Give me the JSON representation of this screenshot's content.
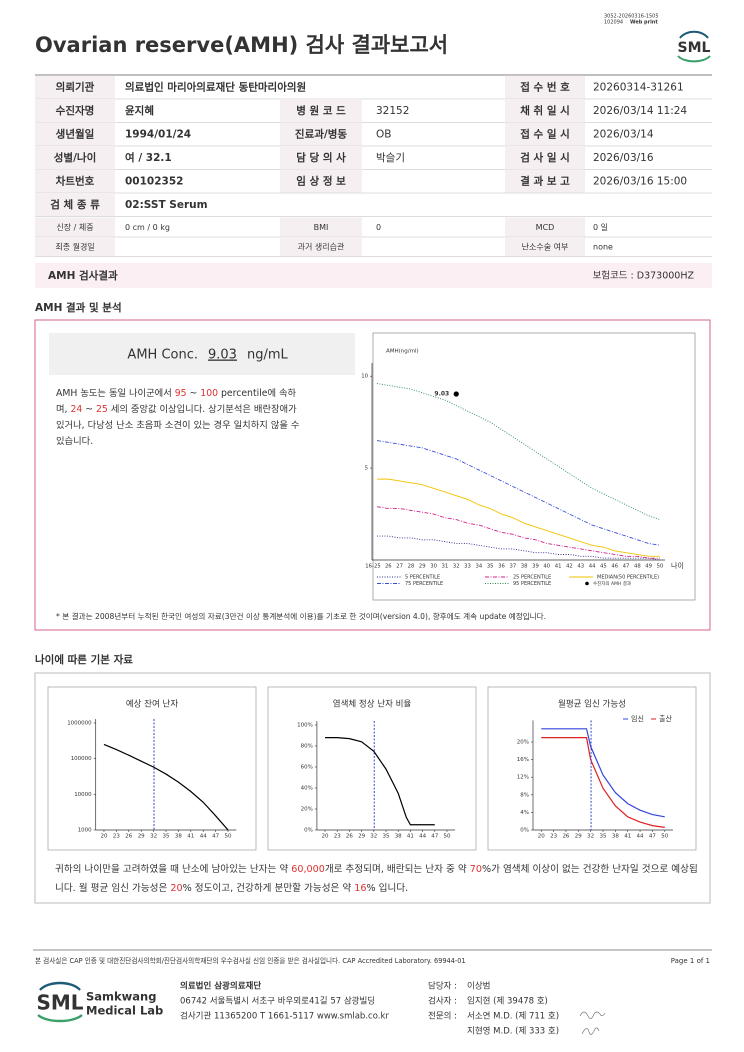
{
  "header": {
    "doc_id": "3052-20260316-1505",
    "print_id": "102094",
    "print_mode": "Web print",
    "title": "Ovarian reserve(AMH) 검사 결과보고서",
    "logo": "SML"
  },
  "patient_info": {
    "rows": [
      [
        {
          "label": "의뢰기관",
          "value": "의료법인 마리아의료재단 동탄마리아의원"
        },
        {
          "label": "접 수 번 호",
          "value": "20260314-31261"
        }
      ],
      [
        {
          "label": "수진자명",
          "value": "윤지혜"
        },
        {
          "label": "병 원 코 드",
          "value": "32152"
        },
        {
          "label": "채 취 일 시",
          "value": "2026/03/14 11:24"
        }
      ],
      [
        {
          "label": "생년월일",
          "value": "1994/01/24"
        },
        {
          "label": "진료과/병동",
          "value": "OB"
        },
        {
          "label": "접 수 일 시",
          "value": "2026/03/14"
        }
      ],
      [
        {
          "label": "성별/나이",
          "value": "여 / 32.1"
        },
        {
          "label": "담 당 의 사",
          "value": "박슬기"
        },
        {
          "label": "검 사 일 시",
          "value": "2026/03/16"
        }
      ],
      [
        {
          "label": "차트번호",
          "value": "00102352"
        },
        {
          "label": "임 상 정 보"
        },
        {
          "label": "결 과 보 고",
          "value": "2026/03/16 15:00"
        }
      ],
      [
        {
          "label": "검 체 종 류",
          "value": "02:SST Serum"
        }
      ]
    ],
    "small_rows": [
      [
        {
          "label": "신장 / 체중",
          "value": "0 cm / 0 kg"
        },
        {
          "label": "BMI",
          "value": "0"
        },
        {
          "label": "MCD",
          "value": "0 일"
        }
      ],
      [
        {
          "label": "최종 월경일"
        },
        {
          "label": "과거 생리습관"
        },
        {
          "label": "난소수술 여부",
          "value": "none"
        }
      ]
    ]
  },
  "result_band": {
    "title": "AMH 검사결과",
    "insurance_code": "보험코드 : D373000HZ"
  },
  "analysis": {
    "section_title": "AMH 결과 및 분석",
    "conc_label": "AMH Conc.",
    "conc_value": 9.03,
    "conc_unit": "ng/mL",
    "text": [
      "AMH 농도는 동일 나이군에서 ",
      "95",
      " ~ ",
      "100",
      " percentile에 속하며, ",
      "24",
      " ~ ",
      "25",
      " 세의 중앙값 이상입니다. 상기분석은 배란장애가 있거나, 다낭성 난소 초음파 소견이 있는 경우 일치하지 않을 수 있습니다."
    ],
    "footnote": "* 본 결과는 2008년부터 누적된 한국인 여성의 자료(3만건 이상 통계분석에 이용)를 기초로 한 것이며(version 4.0), 향후에도 계속 update 예정입니다."
  },
  "amh_chart": {
    "type": "line",
    "y_label": "AMH(ng/ml)",
    "x_label": "나이",
    "categories": [
      "16-25",
      "26",
      "27",
      "28",
      "29",
      "30",
      "31",
      "32",
      "33",
      "34",
      "35",
      "36",
      "37",
      "38",
      "39",
      "40",
      "41",
      "42",
      "43",
      "44",
      "45",
      "46",
      "47",
      "48",
      "49",
      "50"
    ],
    "ylim": [
      0,
      10.5
    ],
    "yticks": [
      5,
      10
    ],
    "series": [
      {
        "name": "5 PERCENTILE",
        "color": "#2d3290",
        "dash": "dotted",
        "values": [
          1.3,
          1.3,
          1.2,
          1.2,
          1.1,
          1.1,
          1.0,
          0.9,
          0.9,
          0.8,
          0.7,
          0.6,
          0.6,
          0.5,
          0.4,
          0.4,
          0.3,
          0.3,
          0.2,
          0.2,
          0.1,
          0.1,
          0.1,
          0.1,
          0.1,
          0.0
        ]
      },
      {
        "name": "25 PERCENTILE",
        "color": "#d0228a",
        "dash": "dashdot",
        "values": [
          2.9,
          2.8,
          2.8,
          2.7,
          2.6,
          2.5,
          2.3,
          2.2,
          2.0,
          1.9,
          1.7,
          1.5,
          1.4,
          1.2,
          1.1,
          0.9,
          0.8,
          0.7,
          0.6,
          0.5,
          0.4,
          0.3,
          0.2,
          0.2,
          0.1,
          0.1
        ]
      },
      {
        "name": "MEDIAN(50 PERCENTILE)",
        "color": "#f2c200",
        "dash": "solid",
        "values": [
          4.4,
          4.4,
          4.3,
          4.2,
          4.1,
          3.9,
          3.7,
          3.5,
          3.3,
          3.0,
          2.8,
          2.5,
          2.3,
          2.0,
          1.8,
          1.6,
          1.4,
          1.2,
          1.0,
          0.8,
          0.7,
          0.5,
          0.4,
          0.3,
          0.2,
          0.2
        ]
      },
      {
        "name": "75 PERCENTILE",
        "color": "#3a4fd8",
        "dash": "dashdot",
        "values": [
          6.5,
          6.4,
          6.3,
          6.2,
          6.1,
          5.9,
          5.7,
          5.5,
          5.2,
          4.9,
          4.6,
          4.3,
          4.0,
          3.7,
          3.4,
          3.1,
          2.8,
          2.5,
          2.2,
          1.9,
          1.7,
          1.5,
          1.3,
          1.1,
          0.9,
          0.8
        ]
      },
      {
        "name": "95 PERCENTILE",
        "color": "#2e8b57",
        "dash": "dotted",
        "values": [
          9.6,
          9.5,
          9.4,
          9.3,
          9.1,
          8.9,
          8.7,
          8.4,
          8.1,
          7.8,
          7.5,
          7.1,
          6.7,
          6.3,
          5.9,
          5.5,
          5.1,
          4.7,
          4.3,
          3.9,
          3.6,
          3.3,
          3.0,
          2.7,
          2.4,
          2.2
        ]
      }
    ],
    "patient": {
      "name": "수진자의 AMH 결과",
      "x": "32",
      "value": 9.03,
      "color": "#000000"
    }
  },
  "age_data": {
    "section_title": "나이에 따른 기본 자료",
    "charts": [
      {
        "type": "line",
        "title": "예상 잔여 난자",
        "log": true,
        "xlim": [
          18,
          52
        ],
        "xticks": [
          20,
          23,
          26,
          29,
          32,
          35,
          38,
          41,
          44,
          47,
          50
        ],
        "ylim": [
          1000,
          1000000
        ],
        "yticks": [
          1000,
          10000,
          100000,
          1000000
        ],
        "marker_x": 32.1,
        "series": [
          {
            "color": "#000000",
            "x": [
              20,
              23,
              26,
              29,
              32,
              35,
              38,
              41,
              44,
              47,
              50
            ],
            "values": [
              250000,
              180000,
              125000,
              85000,
              58000,
              37000,
              22000,
              12000,
              6000,
              2500,
              1000
            ]
          }
        ]
      },
      {
        "type": "line",
        "title": "염색체 정상 난자 비율",
        "xlim": [
          18,
          52
        ],
        "xticks": [
          20,
          23,
          26,
          29,
          32,
          35,
          38,
          41,
          44,
          47,
          50
        ],
        "ylim": [
          0,
          100
        ],
        "yticks": [
          {
            "value": 0,
            "label": "0%"
          },
          {
            "value": 20,
            "label": "20%"
          },
          {
            "value": 40,
            "label": "40%"
          },
          {
            "value": 60,
            "label": "60%"
          },
          {
            "value": 80,
            "label": "80%"
          },
          {
            "value": 100,
            "label": "100%"
          }
        ],
        "marker_x": 32.1,
        "series": [
          {
            "color": "#000000",
            "x": [
              20,
              23,
              26,
              29,
              32,
              35,
              38,
              40,
              41,
              44,
              47
            ],
            "values": [
              88,
              88,
              87,
              84,
              75,
              58,
              35,
              12,
              5,
              5,
              5
            ]
          }
        ]
      },
      {
        "type": "line",
        "title": "월평균 임신 가능성",
        "xlim": [
          18,
          52
        ],
        "xticks": [
          20,
          23,
          26,
          29,
          32,
          35,
          38,
          41,
          44,
          47,
          50
        ],
        "ylim": [
          0,
          24
        ],
        "yticks": [
          {
            "value": 0,
            "label": "0%"
          },
          {
            "value": 4,
            "label": "4%"
          },
          {
            "value": 8,
            "label": "8%"
          },
          {
            "value": 12,
            "label": "12%"
          },
          {
            "value": 16,
            "label": "16%"
          },
          {
            "value": 20,
            "label": "20%"
          }
        ],
        "marker_x": 32.1,
        "series": [
          {
            "name": "임신",
            "color": "#3344dd",
            "x": [
              20,
              23,
              26,
              29,
              31,
              32,
              35,
              38,
              41,
              44,
              47,
              50
            ],
            "values": [
              23,
              23,
              23,
              23,
              23,
              19,
              12.5,
              8.5,
              6,
              4.5,
              3.5,
              3
            ]
          },
          {
            "name": "출산",
            "color": "#dd2222",
            "x": [
              20,
              23,
              26,
              29,
              31,
              32,
              35,
              38,
              41,
              44,
              47,
              50
            ],
            "values": [
              21,
              21,
              21,
              21,
              21,
              16,
              9.5,
              5.5,
              3,
              1.8,
              1,
              0.6
            ]
          }
        ]
      }
    ],
    "text": [
      "귀하의 나이만을 고려하였을 때 난소에 남아있는 난자는 약 ",
      "60,000",
      "개로 추정되며, 배란되는 난자 중 약 ",
      "70",
      "%가 염색체 이상이 없는 건강한 난자일 것으로 예상됩니다. 월 평균 임신 가능성은 ",
      "20",
      "% 정도이고, 건강하게 분만할 가능성은 약 ",
      "16",
      "% 입니다."
    ]
  },
  "footer": {
    "cap_note": "본 검사실은 CAP 인증 및 대한진단검사의학회/진단검사의학재단의 우수검사실 신임 인증을 받은 검사실입니다.  CAP Accredited Laboratory. 69944-01",
    "page": "Page 1 of 1",
    "logo": "SML",
    "lab_name": [
      "Samkwang",
      "Medical Lab"
    ],
    "org": "의료법인 삼광의료재단",
    "address": "06742 서울특별시 서초구 바우뫼로41길 57 삼광빌딩",
    "contact": "검사기관 11365200  T 1661-5117  www.smlab.co.kr",
    "staff": [
      {
        "role": "담당자 :",
        "name": "이상범"
      },
      {
        "role": "검사자 :",
        "name": "임지현 (제 39478 호)"
      },
      {
        "role": "전문의 :",
        "name": "서소연 M.D. (제 711 호)"
      },
      {
        "name": "지현영 M.D. (제 333 호)"
      }
    ]
  }
}
